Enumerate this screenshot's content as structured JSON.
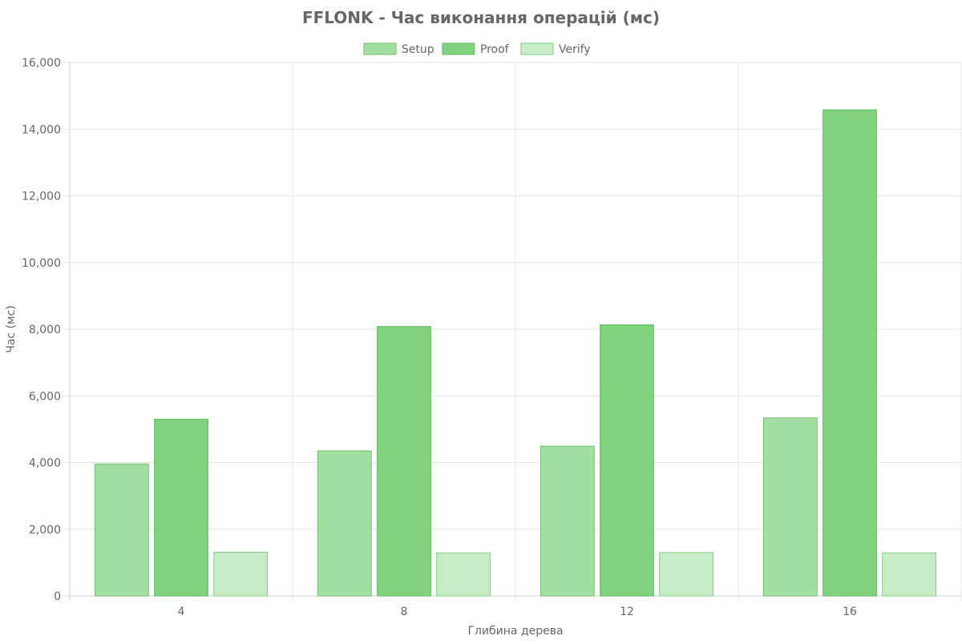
{
  "chart_data": {
    "type": "bar",
    "title": "FFLONK - Час виконання операцій (мс)",
    "xlabel": "Глибина дерева",
    "ylabel": "Час (мс)",
    "categories": [
      "4",
      "8",
      "12",
      "16"
    ],
    "series": [
      {
        "name": "Setup",
        "values": [
          3960,
          4350,
          4490,
          5340
        ],
        "color": "#a3dfa2",
        "stroke": "#6cc56a"
      },
      {
        "name": "Proof",
        "values": [
          5300,
          8080,
          8130,
          14580
        ],
        "color": "#80d27e",
        "stroke": "#5fbf5c"
      },
      {
        "name": "Verify",
        "values": [
          1310,
          1290,
          1300,
          1290
        ],
        "color": "#c9ecc8",
        "stroke": "#7dcf7b"
      }
    ],
    "ylim": [
      0,
      16000
    ],
    "yticks": [
      0,
      2000,
      4000,
      6000,
      8000,
      10000,
      12000,
      14000,
      16000
    ],
    "ytick_labels": [
      "0",
      "2,000",
      "4,000",
      "6,000",
      "8,000",
      "10,000",
      "12,000",
      "14,000",
      "16,000"
    ],
    "grid": true,
    "legend_position": "top-center"
  },
  "colors": {
    "text": "#666666",
    "grid": "#e6e6e6",
    "axis": "#cccccc"
  }
}
